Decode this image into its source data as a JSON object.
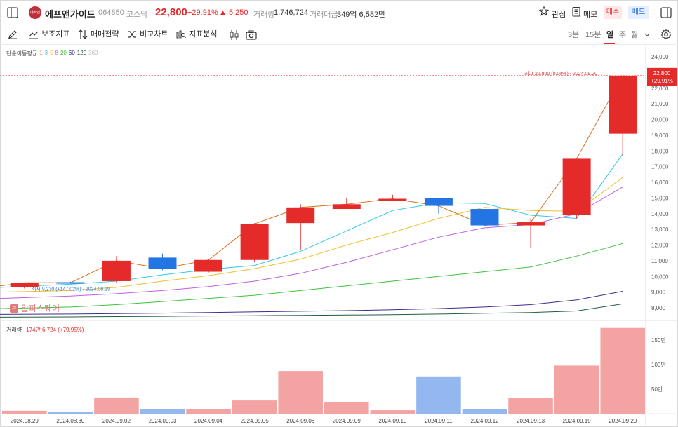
{
  "header": {
    "logo_text": "에프앤가이드",
    "name": "에프앤가이드",
    "code": "064850",
    "market": "코스닥",
    "price": "22,800",
    "change_pct": "+29.91%",
    "change_abs": "5,250",
    "separator": "·",
    "volume_label": "거래량",
    "volume_value": "1,746,724",
    "amount_label": "거래대금",
    "amount_value": "349억 6,582만",
    "favorite_label": "관심",
    "memo_label": "메모",
    "buy_label": "매수",
    "sell_label": "매도"
  },
  "toolbar": {
    "indicators": "보조지표",
    "strategy": "매매전략",
    "compare": "비교차트",
    "analysis": "지표분석",
    "periods": [
      "3분",
      "15분",
      "일",
      "주",
      "월"
    ],
    "active_period": "일"
  },
  "ma_legend": {
    "label": "단순이동평균",
    "periods": [
      {
        "text": "1",
        "color": "#e07020"
      },
      {
        "text": "3",
        "color": "#30c8e8"
      },
      {
        "text": "5",
        "color": "#f0c030"
      },
      {
        "text": "8",
        "color": "#c060e0"
      },
      {
        "text": "20",
        "color": "#40c040"
      },
      {
        "text": "60",
        "color": "#3b2d8f"
      },
      {
        "text": "120",
        "color": "#1f5f3f"
      },
      {
        "text": "360",
        "color": "#bbbbbb"
      }
    ]
  },
  "watermark": {
    "icon_text": "ㄹ",
    "text": "알파스퀘어"
  },
  "volume_legend": {
    "label": "거래량",
    "value": "174만 6,724 (+79.95%)"
  },
  "colors": {
    "up": "#e52a2a",
    "down": "#2475e4",
    "vol_up": "#f4a3a3",
    "vol_down": "#93b8f0"
  },
  "chart_data": {
    "type": "candlestick",
    "y_ticks": [
      "24,000",
      "23,000",
      "22,000",
      "21,000",
      "20,000",
      "19,000",
      "18,000",
      "17,000",
      "16,000",
      "15,000",
      "14,000",
      "13,000",
      "12,000",
      "11,000",
      "10,000",
      "9,000",
      "8,000"
    ],
    "ylim": [
      7500,
      24200
    ],
    "current_price_tag": [
      "22,800",
      "+29.91%"
    ],
    "high_annotation": "최고 22,800 (0.00%) - 2024.09.20 →",
    "low_annotation": "← 최저 9,230 (+147.02%) - 2024.08.29",
    "categories": [
      "2024.08.29",
      "2024.08.30",
      "2024.09.02",
      "2024.09.03",
      "2024.09.04",
      "2024.09.05",
      "2024.09.06",
      "2024.09.09",
      "2024.09.10",
      "2024.09.11",
      "2024.09.12",
      "2024.09.13",
      "2024.09.19",
      "2024.09.20"
    ],
    "candles": [
      {
        "o": 9300,
        "h": 9600,
        "l": 9230,
        "c": 9600
      },
      {
        "o": 9630,
        "h": 9660,
        "l": 9600,
        "c": 9600
      },
      {
        "o": 9700,
        "h": 11300,
        "l": 9600,
        "c": 11000
      },
      {
        "o": 11200,
        "h": 11450,
        "l": 10400,
        "c": 10500
      },
      {
        "o": 10300,
        "h": 11100,
        "l": 10250,
        "c": 11050
      },
      {
        "o": 11050,
        "h": 13400,
        "l": 10900,
        "c": 13350
      },
      {
        "o": 13400,
        "h": 14600,
        "l": 11700,
        "c": 14400
      },
      {
        "o": 14300,
        "h": 15000,
        "l": 14300,
        "c": 14600
      },
      {
        "o": 14800,
        "h": 15200,
        "l": 14800,
        "c": 14950
      },
      {
        "o": 15000,
        "h": 15000,
        "l": 14000,
        "c": 14500
      },
      {
        "o": 14300,
        "h": 14300,
        "l": 13200,
        "c": 13250
      },
      {
        "o": 13250,
        "h": 13700,
        "l": 11850,
        "c": 13450
      },
      {
        "o": 13900,
        "h": 17500,
        "l": 13700,
        "c": 17500
      },
      {
        "o": 19100,
        "h": 22800,
        "l": 17700,
        "c": 22800
      }
    ],
    "volume_ticks": [
      "150만",
      "100만",
      "50만"
    ],
    "volume_max": 1800000,
    "volumes": [
      60000,
      40000,
      330000,
      100000,
      90000,
      270000,
      870000,
      240000,
      70000,
      760000,
      90000,
      320000,
      980000,
      1746724
    ],
    "volume_up": [
      true,
      false,
      true,
      false,
      true,
      true,
      true,
      true,
      true,
      false,
      false,
      true,
      true,
      true
    ],
    "moving_averages": [
      {
        "period": "3",
        "color": "#30c8e8",
        "values": [
          9300,
          9500,
          9700,
          10100,
          10450,
          10700,
          11600,
          12900,
          14200,
          14700,
          14650,
          13900,
          13700,
          17800
        ]
      },
      {
        "period": "5",
        "color": "#f0c030",
        "values": [
          9000,
          9100,
          9300,
          9700,
          10050,
          10500,
          11100,
          12000,
          12800,
          13700,
          14400,
          14200,
          14150,
          16300
        ]
      },
      {
        "period": "8",
        "color": "#c060e0",
        "values": [
          8600,
          8750,
          8900,
          9100,
          9350,
          9700,
          10200,
          10900,
          11700,
          12500,
          13100,
          13300,
          14000,
          15700
        ]
      },
      {
        "period": "20",
        "color": "#40c040",
        "values": [
          7950,
          8050,
          8200,
          8400,
          8600,
          8800,
          9100,
          9400,
          9700,
          10000,
          10300,
          10600,
          11300,
          12100
        ]
      },
      {
        "period": "60",
        "color": "#3b2d8f",
        "values": [
          7580,
          7600,
          7630,
          7660,
          7700,
          7740,
          7780,
          7820,
          7880,
          7950,
          8050,
          8200,
          8500,
          9050
        ]
      },
      {
        "period": "120",
        "color": "#1f5f3f",
        "values": [
          7400,
          7420,
          7440,
          7460,
          7480,
          7500,
          7520,
          7540,
          7560,
          7600,
          7650,
          7700,
          7800,
          8250
        ]
      }
    ]
  }
}
